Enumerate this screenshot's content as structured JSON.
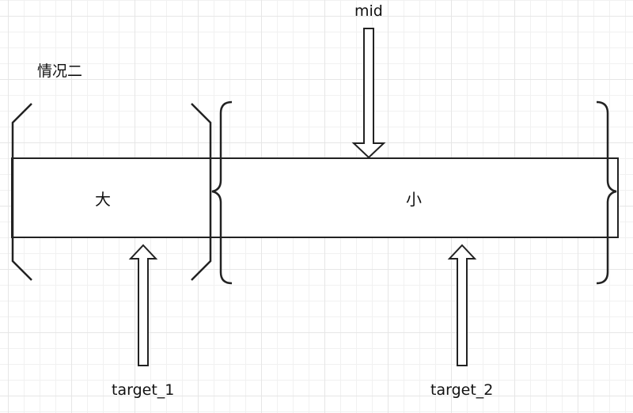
{
  "diagram": {
    "case_label": "情况二",
    "mid_label": "mid",
    "large_label": "大",
    "small_label": "小",
    "target1_label": "target_1",
    "target2_label": "target_2",
    "colors": {
      "stroke": "#222222",
      "grid": "#e6e6e6",
      "background": "#ffffff"
    },
    "icons": [
      "down-arrow-icon",
      "up-arrow-icon"
    ]
  }
}
